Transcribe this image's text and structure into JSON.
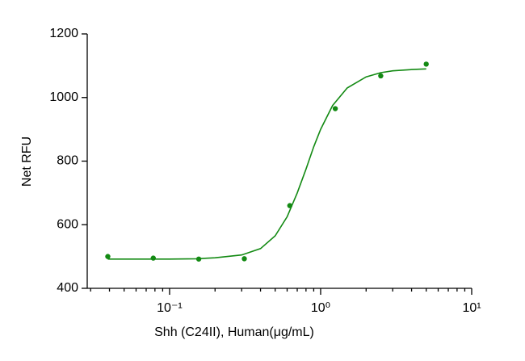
{
  "chart_data": {
    "type": "scatter",
    "x_label": "Shh (C24II), Human(μg/mL)",
    "y_label": "Net RFU",
    "xscale": "log",
    "xlim": [
      0.0285,
      10
    ],
    "xticks": [
      {
        "value": 0.1,
        "label": "10⁻¹"
      },
      {
        "value": 1,
        "label": "10⁰"
      },
      {
        "value": 10,
        "label": "10¹"
      }
    ],
    "xminorticks": [
      0.03,
      0.04,
      0.05,
      0.06,
      0.07,
      0.08,
      0.09,
      0.2,
      0.3,
      0.4,
      0.5,
      0.6,
      0.7,
      0.8,
      0.9,
      2,
      3,
      4,
      5,
      6,
      7,
      8,
      9
    ],
    "ylim": [
      400,
      1200
    ],
    "yticks": [
      400,
      600,
      800,
      1000,
      1200
    ],
    "series": [
      {
        "mode": "markers",
        "color": "#138a13",
        "x": [
          0.039,
          0.078,
          0.156,
          0.3125,
          0.625,
          1.25,
          2.5,
          5
        ],
        "values": [
          500,
          495,
          492,
          493,
          660,
          965,
          1068,
          1105
        ]
      },
      {
        "mode": "line",
        "color": "#138a13",
        "x": [
          0.039,
          0.06,
          0.1,
          0.15,
          0.2,
          0.3,
          0.4,
          0.5,
          0.6,
          0.7,
          0.8,
          0.9,
          1,
          1.2,
          1.5,
          2,
          2.5,
          3,
          4,
          5
        ],
        "values": [
          492,
          492,
          492,
          493,
          496,
          505,
          525,
          565,
          625,
          700,
          775,
          845,
          900,
          975,
          1030,
          1065,
          1078,
          1084,
          1088,
          1090
        ]
      }
    ]
  }
}
